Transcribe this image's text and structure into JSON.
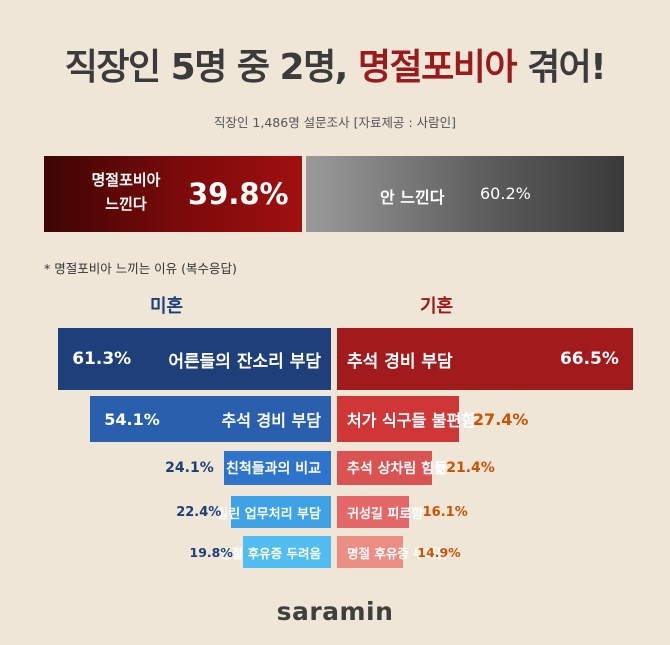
{
  "title": {
    "part1": "직장인 5명 중 2명,",
    "accent": "명절포비아",
    "part2": "겪어!"
  },
  "subtitle": "직장인 1,486명 설문조사 [자료제공 : 사람인]",
  "split": {
    "yes_label_1": "명절포비아",
    "yes_label_2": "느낀다",
    "yes_pct": "39.8%",
    "no_label": "안 느낀다",
    "no_pct": "60.2%"
  },
  "note": "* 명절포비아 느끼는 이유 (복수응답)",
  "logo": "saramin",
  "chart_data": [
    {
      "type": "bar",
      "title": "",
      "categories": [
        "명절포비아 느낀다",
        "안 느낀다"
      ],
      "values": [
        39.8,
        60.2
      ],
      "unit": "%"
    },
    {
      "type": "bar",
      "title": "미혼",
      "categories": [
        "어른들의 잔소리 부담",
        "추석 경비 부담",
        "친척들과의 비교",
        "밀린 업무처리 부담",
        "명절 후유증 두려움"
      ],
      "values": [
        61.3,
        54.1,
        24.1,
        22.4,
        19.8
      ],
      "labels": [
        "61.3%",
        "54.1%",
        "24.1%",
        "22.4%",
        "19.8%"
      ],
      "colors": [
        "#1e3f79",
        "#2a5fad",
        "#2e74cc",
        "#3ea2e6",
        "#52bdf0"
      ]
    },
    {
      "type": "bar",
      "title": "기혼",
      "categories": [
        "추석 경비 부담",
        "처가 식구들 불편함",
        "추석 상차림 힘듦",
        "귀성길 피로함",
        "명절 후유증 두려움"
      ],
      "values": [
        66.5,
        27.4,
        21.4,
        16.1,
        14.9
      ],
      "labels": [
        "66.5%",
        "27.4%",
        "21.4%",
        "16.1%",
        "14.9%"
      ],
      "colors": [
        "#a11a1c",
        "#cf3737",
        "#db5252",
        "#e46868",
        "#ec8e84"
      ]
    }
  ]
}
